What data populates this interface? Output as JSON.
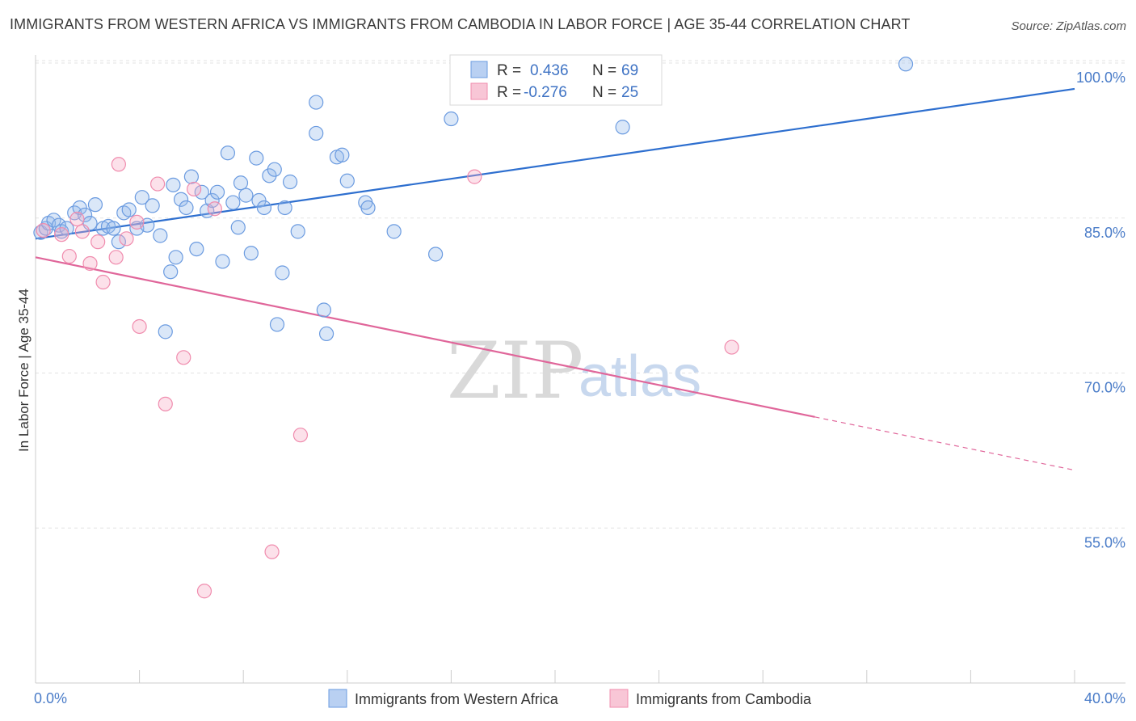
{
  "title": "IMMIGRANTS FROM WESTERN AFRICA VS IMMIGRANTS FROM CAMBODIA IN LABOR FORCE | AGE 35-44 CORRELATION CHART",
  "source": "Source: ZipAtlas.com",
  "watermark": {
    "zip": "ZIP",
    "atlas": "atlas"
  },
  "legend": {
    "rows": [
      {
        "r_label": "R =",
        "r_value": "0.436",
        "n_label": "N =",
        "n_value": "69"
      },
      {
        "r_label": "R =",
        "r_value": "-0.276",
        "n_label": "N =",
        "n_value": "25"
      }
    ]
  },
  "chart_data": {
    "type": "scatter",
    "title": "IMMIGRANTS FROM WESTERN AFRICA VS IMMIGRANTS FROM CAMBODIA IN LABOR FORCE | AGE 35-44 CORRELATION CHART",
    "xlabel": "",
    "ylabel": "In Labor Force | Age 35-44",
    "xlim": [
      0,
      40
    ],
    "ylim": [
      40,
      100
    ],
    "y_ticks": [
      55,
      70,
      85,
      100
    ],
    "y_tick_labels": [
      "55.0%",
      "70.0%",
      "85.0%",
      "100.0%"
    ],
    "x_tick_labels": [
      "0.0%",
      "40.0%"
    ],
    "grid": true,
    "legend_placement": "top-center",
    "colors": {
      "western_africa": "#6b9be0",
      "cambodia": "#f08cae",
      "western_africa_line": "#2e6fcf",
      "cambodia_line": "#e0669a"
    },
    "series": [
      {
        "name": "Immigrants from Western Africa",
        "color": "#6b9be0",
        "trend": {
          "x0": 0,
          "y0": 83.0,
          "x1": 40,
          "y1": 97.5,
          "solid_until": 40
        },
        "points": [
          [
            0.2,
            83.6
          ],
          [
            0.4,
            84.0
          ],
          [
            0.5,
            84.5
          ],
          [
            0.7,
            84.8
          ],
          [
            0.9,
            84.3
          ],
          [
            1.0,
            83.7
          ],
          [
            1.2,
            84.0
          ],
          [
            1.5,
            85.5
          ],
          [
            1.7,
            86.0
          ],
          [
            1.9,
            85.3
          ],
          [
            2.1,
            84.5
          ],
          [
            2.3,
            86.3
          ],
          [
            2.6,
            84.0
          ],
          [
            2.8,
            84.2
          ],
          [
            3.0,
            84.0
          ],
          [
            3.2,
            82.7
          ],
          [
            3.4,
            85.5
          ],
          [
            3.6,
            85.8
          ],
          [
            3.9,
            84.0
          ],
          [
            4.1,
            87.0
          ],
          [
            4.3,
            84.3
          ],
          [
            4.5,
            86.2
          ],
          [
            4.8,
            83.3
          ],
          [
            5.0,
            74.0
          ],
          [
            5.2,
            79.8
          ],
          [
            5.3,
            88.2
          ],
          [
            5.4,
            81.2
          ],
          [
            5.6,
            86.8
          ],
          [
            5.8,
            86.0
          ],
          [
            6.0,
            89.0
          ],
          [
            6.2,
            82.0
          ],
          [
            6.4,
            87.5
          ],
          [
            6.6,
            85.7
          ],
          [
            6.8,
            86.7
          ],
          [
            7.0,
            87.5
          ],
          [
            7.2,
            80.8
          ],
          [
            7.4,
            91.3
          ],
          [
            7.6,
            86.5
          ],
          [
            7.8,
            84.1
          ],
          [
            7.9,
            88.4
          ],
          [
            8.1,
            87.2
          ],
          [
            8.3,
            81.6
          ],
          [
            8.5,
            90.8
          ],
          [
            8.6,
            86.7
          ],
          [
            8.8,
            86.0
          ],
          [
            9.0,
            89.1
          ],
          [
            9.2,
            89.7
          ],
          [
            9.3,
            74.7
          ],
          [
            9.5,
            79.7
          ],
          [
            9.6,
            86.0
          ],
          [
            9.8,
            88.5
          ],
          [
            10.1,
            83.7
          ],
          [
            10.8,
            93.2
          ],
          [
            10.8,
            96.2
          ],
          [
            11.1,
            76.1
          ],
          [
            11.2,
            73.8
          ],
          [
            11.6,
            90.9
          ],
          [
            11.8,
            91.1
          ],
          [
            12.0,
            88.6
          ],
          [
            12.7,
            86.5
          ],
          [
            12.8,
            86.0
          ],
          [
            13.8,
            83.7
          ],
          [
            15.4,
            81.5
          ],
          [
            16.0,
            94.6
          ],
          [
            22.6,
            93.8
          ],
          [
            33.5,
            99.9
          ]
        ]
      },
      {
        "name": "Immigrants from Cambodia",
        "color": "#f08cae",
        "trend": {
          "x0": 0,
          "y0": 81.2,
          "x1": 40,
          "y1": 60.6,
          "solid_until": 30
        },
        "points": [
          [
            0.3,
            83.8
          ],
          [
            1.0,
            83.4
          ],
          [
            1.3,
            81.3
          ],
          [
            1.6,
            84.9
          ],
          [
            1.8,
            83.7
          ],
          [
            2.1,
            80.6
          ],
          [
            2.4,
            82.7
          ],
          [
            2.6,
            78.8
          ],
          [
            3.1,
            81.2
          ],
          [
            3.2,
            90.2
          ],
          [
            3.5,
            83.0
          ],
          [
            3.9,
            84.6
          ],
          [
            4.0,
            74.5
          ],
          [
            4.7,
            88.3
          ],
          [
            5.0,
            67.0
          ],
          [
            5.7,
            71.5
          ],
          [
            6.1,
            87.8
          ],
          [
            6.5,
            48.9
          ],
          [
            6.9,
            85.9
          ],
          [
            9.1,
            52.7
          ],
          [
            10.2,
            64.0
          ],
          [
            16.9,
            89.0
          ],
          [
            26.8,
            72.5
          ]
        ]
      }
    ]
  },
  "bottom_legend": [
    {
      "label": "Immigrants from Western Africa",
      "color": "#b9d0f2",
      "border": "#6b9be0"
    },
    {
      "label": "Immigrants from Cambodia",
      "color": "#f8c6d6",
      "border": "#f08cae"
    }
  ]
}
